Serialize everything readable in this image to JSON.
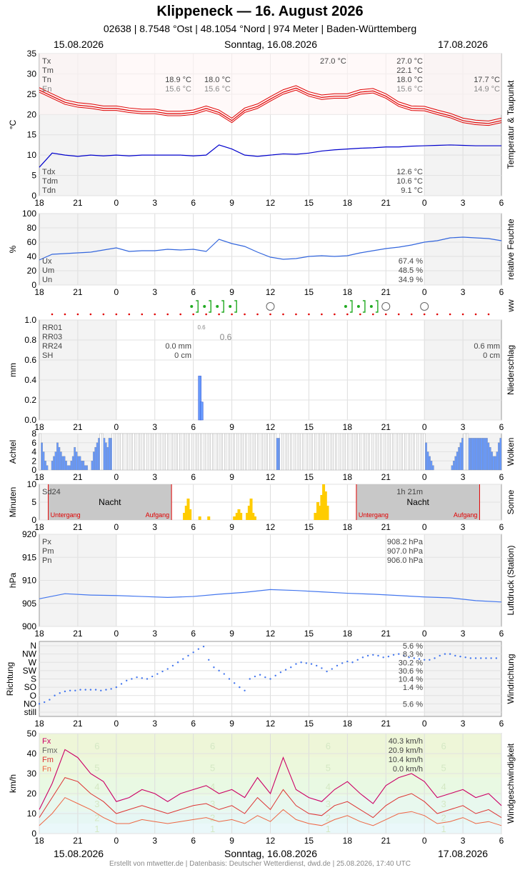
{
  "header": {
    "title": "Klippeneck  —  16. August 2026",
    "subtitle": "02638  |  8.7548 °Ost  |  48.1054 °Nord  |  974 Meter  |  Baden-Württemberg",
    "date_left": "15.08.2026",
    "date_center": "Sonntag, 16.08.2026",
    "date_right": "17.08.2026"
  },
  "footer": "Erstellt von mtwetter.de | Datenbasis: Deutscher Wetterdienst, dwd.de | 25.08.2026, 17:40 UTC",
  "x_ticks": [
    "18",
    "21",
    "0",
    "3",
    "6",
    "9",
    "12",
    "15",
    "18",
    "21",
    "0",
    "3",
    "6"
  ],
  "colors": {
    "temp": "#e00000",
    "dew": "#0000cc",
    "hum": "#3366dd",
    "bars": "#6699ff",
    "sun": "#ffcc00",
    "px": "#4477ee",
    "fx": "#cc0066",
    "fmx": "#dd3333",
    "fm": "#ee6644"
  },
  "chart_data": [
    {
      "type": "line",
      "name": "temperature",
      "ylabel": "°C",
      "side_label": "Temperatur & Taupunkt",
      "ylim": [
        0,
        35
      ],
      "yticks": [
        "0",
        "5",
        "10",
        "15",
        "20",
        "25",
        "30",
        "35"
      ],
      "labels": [
        "Tx",
        "Tm",
        "Tn",
        "En"
      ],
      "dew_labels": [
        "Tdx",
        "Tdm",
        "Tdn"
      ],
      "annotations": {
        "day1_tn": "18.9 °C",
        "day1_en": "15.6 °C",
        "min_tn": "18.0 °C",
        "min_en": "15.6 °C",
        "tx_max": "27.0 °C",
        "sum_tx": "27.0 °C",
        "sum_tm": "22.1 °C",
        "sum_tn": "18.0 °C",
        "sum_en": "15.6 °C",
        "next_tn": "17.7 °C",
        "next_en": "14.9 °C",
        "sum_tdx": "12.6 °C",
        "sum_tdm": "10.6 °C",
        "sum_tdn": "9.1 °C"
      },
      "temp_x": [
        0,
        1,
        2,
        3,
        4,
        5,
        6,
        7,
        8,
        9,
        10,
        11,
        12,
        13,
        14,
        15,
        16,
        17,
        18,
        19,
        20,
        21,
        22,
        23,
        24,
        25,
        26,
        27,
        28,
        29,
        30,
        31,
        32,
        33,
        34,
        35,
        36
      ],
      "temp_y": [
        26,
        24.5,
        23,
        22.3,
        22,
        21.5,
        21.5,
        21,
        20.7,
        20.7,
        20.2,
        20.2,
        20.5,
        21.5,
        20.5,
        18.5,
        21,
        22,
        23.8,
        25.5,
        26.5,
        25,
        24.2,
        24.5,
        24.5,
        25.5,
        25.8,
        24.5,
        22.5,
        21.5,
        21.4,
        20.5,
        19.7,
        18.5,
        18,
        17.8,
        18.5
      ],
      "dew_y": [
        7,
        10.5,
        10,
        9.7,
        10,
        9.8,
        10,
        9.8,
        10,
        10,
        10,
        10,
        9.8,
        10,
        12.5,
        11.5,
        10,
        9.7,
        10,
        10.3,
        10.2,
        10.5,
        11,
        11.3,
        11.5,
        11.7,
        11.8,
        12,
        12,
        12.2,
        12.3,
        12.4,
        12.5,
        12.4,
        12.3,
        12.3,
        12.3
      ]
    },
    {
      "type": "line",
      "name": "humidity",
      "ylabel": "%",
      "side_label": "relative Feuchte",
      "ylim": [
        0,
        100
      ],
      "yticks": [
        "0",
        "20",
        "40",
        "60",
        "80",
        "100"
      ],
      "labels": [
        "Ux",
        "Um",
        "Un"
      ],
      "summary": [
        "67.4 %",
        "48.5 %",
        "34.9 %"
      ],
      "x": [
        0,
        1,
        2,
        3,
        4,
        5,
        6,
        7,
        8,
        9,
        10,
        11,
        12,
        13,
        14,
        15,
        16,
        17,
        18,
        19,
        20,
        21,
        22,
        23,
        24,
        25,
        26,
        27,
        28,
        29,
        30,
        31,
        32,
        33,
        34,
        35,
        36
      ],
      "y": [
        35,
        43,
        44,
        45,
        46,
        49,
        52,
        47,
        48,
        48,
        50,
        49,
        50,
        47,
        64,
        58,
        54,
        46,
        39,
        36,
        37,
        40,
        41,
        40,
        41,
        45,
        48,
        51,
        53,
        56,
        60,
        62,
        66,
        67,
        66,
        65,
        62
      ]
    },
    {
      "type": "bar",
      "name": "precipitation",
      "ylabel": "mm",
      "side_label": "Niederschlag",
      "ww_label": "ww",
      "ylim": [
        0,
        1
      ],
      "yticks": [
        "0.0",
        "0.2",
        "0.4",
        "0.6",
        "0.8",
        "1.0"
      ],
      "labels": [
        "RR01",
        "RR03",
        "RR24",
        "SH"
      ],
      "values_day1": [
        "0.0 mm",
        "0 cm"
      ],
      "values_day2": [
        "0.6 mm",
        "0 cm"
      ],
      "peak_small": "0.6",
      "peak_label": "0.6",
      "bars": [
        {
          "x": 12.5,
          "v": 0.44
        },
        {
          "x": 12.65,
          "v": 0.18
        }
      ]
    },
    {
      "type": "bar",
      "name": "clouds",
      "ylabel": "Achtel",
      "side_label": "Wolken",
      "ylim": [
        0,
        8
      ],
      "yticks": [
        "0",
        "2",
        "4",
        "6",
        "8"
      ],
      "values": [
        8,
        6,
        4,
        2,
        1,
        0,
        0,
        2,
        3,
        4,
        6,
        5,
        4,
        3,
        3,
        2,
        1,
        1,
        2,
        3,
        5,
        4,
        3,
        3,
        2,
        2,
        1,
        1,
        0,
        0,
        2,
        4,
        5,
        6,
        7,
        8,
        8,
        7,
        6,
        5,
        7,
        7,
        8,
        8,
        8,
        8,
        8,
        8,
        8,
        8,
        8,
        8,
        8,
        8,
        8,
        8,
        8,
        8,
        8,
        8,
        8,
        8,
        8,
        8,
        8,
        8,
        8,
        8,
        8,
        8,
        8,
        8,
        8,
        8,
        8,
        8,
        8,
        8,
        8,
        8,
        8,
        8,
        8,
        8,
        8,
        8,
        8,
        8,
        8,
        8,
        8,
        8,
        8,
        8,
        8,
        8,
        8,
        8,
        8,
        8,
        8,
        8,
        8,
        8,
        8,
        8,
        8,
        8,
        8,
        8,
        8,
        8,
        8,
        8,
        8,
        8,
        8,
        8,
        8,
        8,
        8,
        8,
        8,
        8,
        8,
        8,
        8,
        8,
        8,
        8,
        8,
        8,
        8,
        8,
        8,
        8,
        8,
        7,
        7,
        8,
        8,
        8,
        8,
        8,
        8,
        8,
        8,
        8,
        8,
        8,
        8,
        8,
        8,
        8,
        8,
        8,
        8,
        8,
        8,
        8,
        8,
        8,
        8,
        8,
        8,
        8,
        8,
        8,
        8,
        8,
        8,
        8,
        8,
        8,
        8,
        8,
        8,
        8,
        8,
        8,
        8,
        8,
        8,
        8,
        8,
        8,
        8,
        8,
        8,
        8,
        8,
        8,
        8,
        8,
        8,
        8,
        8,
        8,
        8,
        8,
        8,
        8,
        8,
        8,
        8,
        8,
        8,
        8,
        8,
        8,
        8,
        8,
        8,
        8,
        8,
        8,
        8,
        8,
        8,
        8,
        8,
        8,
        8,
        6,
        4,
        3,
        2,
        1,
        0,
        0,
        0,
        0,
        0,
        0,
        0,
        0,
        0,
        0,
        1,
        2,
        3,
        4,
        5,
        6,
        7,
        8,
        8,
        8,
        7,
        7,
        7,
        7,
        7,
        7,
        7,
        7,
        7,
        7,
        7,
        6,
        5,
        4,
        3,
        3,
        4,
        6,
        7
      ]
    },
    {
      "type": "bar",
      "name": "sunshine",
      "ylabel": "Minuten",
      "side_label": "Sonne",
      "ylim": [
        0,
        10
      ],
      "yticks": [
        "0",
        "5",
        "10"
      ],
      "labels": [
        "Sd24"
      ],
      "sun_total": "1h 21m",
      "night_label": "Nacht",
      "sunset_label": "Untergang",
      "sunrise_label": "Aufgang",
      "bars": [
        {
          "x": 11.3,
          "v": 2
        },
        {
          "x": 11.45,
          "v": 4
        },
        {
          "x": 11.6,
          "v": 6
        },
        {
          "x": 11.75,
          "v": 3
        },
        {
          "x": 12.5,
          "v": 1
        },
        {
          "x": 13.2,
          "v": 1
        },
        {
          "x": 15.2,
          "v": 1
        },
        {
          "x": 15.4,
          "v": 2
        },
        {
          "x": 15.55,
          "v": 3
        },
        {
          "x": 15.7,
          "v": 2
        },
        {
          "x": 16.2,
          "v": 2
        },
        {
          "x": 16.35,
          "v": 4
        },
        {
          "x": 16.5,
          "v": 6
        },
        {
          "x": 16.65,
          "v": 2
        },
        {
          "x": 16.8,
          "v": 1
        },
        {
          "x": 21.5,
          "v": 2
        },
        {
          "x": 21.7,
          "v": 5
        },
        {
          "x": 21.85,
          "v": 4
        },
        {
          "x": 22.0,
          "v": 7
        },
        {
          "x": 22.15,
          "v": 10
        },
        {
          "x": 22.3,
          "v": 8
        },
        {
          "x": 22.45,
          "v": 4
        }
      ]
    },
    {
      "type": "line",
      "name": "pressure",
      "ylabel": "hPa",
      "side_label": "Luftdruck (Station)",
      "ylim": [
        900,
        920
      ],
      "yticks": [
        "900",
        "905",
        "910",
        "915",
        "920"
      ],
      "labels": [
        "Px",
        "Pm",
        "Pn"
      ],
      "summary": [
        "908.2 hPa",
        "907.0 hPa",
        "906.0 hPa"
      ],
      "x": [
        0,
        2,
        4,
        6,
        8,
        10,
        12,
        14,
        16,
        18,
        20,
        22,
        24,
        26,
        28,
        30,
        32,
        34,
        36
      ],
      "y": [
        906,
        907.1,
        906.8,
        906.7,
        906.5,
        906.3,
        906.5,
        907.0,
        907.4,
        908.0,
        907.8,
        907.5,
        907.2,
        907.0,
        906.7,
        906.4,
        906.2,
        905.6,
        905.3
      ]
    },
    {
      "type": "scatter",
      "name": "wind_direction",
      "ylabel": "Richtung",
      "side_label": "Windrichtung",
      "categories": [
        "still",
        "NO",
        "O",
        "SO",
        "S",
        "SW",
        "W",
        "NW",
        "N"
      ],
      "summary": [
        "5.6 %",
        "8.3 %",
        "30.2 %",
        "30.6 %",
        "10.4 %",
        "1.4 %",
        "",
        "5.6 %"
      ],
      "y": [
        1,
        1.2,
        1.5,
        2,
        2.3,
        2.5,
        2.6,
        2.6,
        2.7,
        2.7,
        2.7,
        2.7,
        2.6,
        2.7,
        2.8,
        3.0,
        3.4,
        3.8,
        4,
        4.2,
        4.1,
        4.0,
        4.3,
        4.6,
        4.9,
        5.2,
        5.6,
        6.0,
        6.4,
        6.8,
        7.2,
        7.6,
        7.9,
        6.3,
        5.4,
        5.0,
        4.6,
        4.0,
        3.5,
        3.0,
        2.6,
        4.0,
        4.3,
        4.5,
        4.2,
        4.0,
        4.4,
        4.8,
        5.1,
        5.4,
        5.8,
        6.0,
        5.9,
        5.8,
        5.6,
        5.3,
        4.9,
        5.2,
        5.6,
        5.9,
        6.1,
        6.0,
        6.3,
        6.6,
        6.8,
        6.9,
        6.8,
        6.6,
        6.7,
        6.9,
        7.0,
        6.8,
        6.6,
        6.5,
        6.4,
        6.3,
        6.3,
        6.5,
        6.8,
        7.0,
        7.0,
        6.8,
        6.7,
        6.6,
        6.5,
        6.5,
        6.5,
        6.5,
        6.5,
        6.5
      ]
    },
    {
      "type": "line",
      "name": "wind_speed",
      "ylabel": "km/h",
      "side_label": "Windgeschwindigkeit",
      "ylim": [
        0,
        50
      ],
      "yticks": [
        "0",
        "10",
        "20",
        "30",
        "40",
        "50"
      ],
      "labels": [
        "Fx",
        "Fmx",
        "Fm",
        "Fn"
      ],
      "summary": [
        "40.3 km/h",
        "20.9 km/h",
        "10.4 km/h",
        "0.0 km/h"
      ],
      "bft": [
        "1",
        "2",
        "3",
        "4",
        "5",
        "6"
      ],
      "x": [
        0,
        1,
        2,
        3,
        4,
        5,
        6,
        7,
        8,
        9,
        10,
        11,
        12,
        13,
        14,
        15,
        16,
        17,
        18,
        19,
        20,
        21,
        22,
        23,
        24,
        25,
        26,
        27,
        28,
        29,
        30,
        31,
        32,
        33,
        34,
        35,
        36
      ],
      "fx": [
        12,
        25,
        42,
        38,
        30,
        26,
        16,
        18,
        22,
        20,
        16,
        20,
        22,
        24,
        20,
        22,
        18,
        28,
        20,
        38,
        22,
        18,
        16,
        22,
        26,
        20,
        15,
        24,
        28,
        30,
        26,
        18,
        20,
        22,
        18,
        20,
        14
      ],
      "fmx": [
        8,
        18,
        28,
        26,
        20,
        16,
        10,
        12,
        14,
        12,
        10,
        12,
        14,
        15,
        12,
        14,
        10,
        18,
        12,
        22,
        14,
        10,
        9,
        14,
        16,
        12,
        8,
        14,
        18,
        20,
        16,
        10,
        12,
        14,
        10,
        12,
        8
      ],
      "fm": [
        4,
        10,
        18,
        15,
        12,
        8,
        5,
        5,
        7,
        6,
        5,
        6,
        7,
        8,
        6,
        7,
        5,
        9,
        6,
        12,
        7,
        5,
        4,
        7,
        9,
        6,
        4,
        7,
        10,
        11,
        9,
        5,
        6,
        8,
        5,
        6,
        4
      ]
    }
  ]
}
